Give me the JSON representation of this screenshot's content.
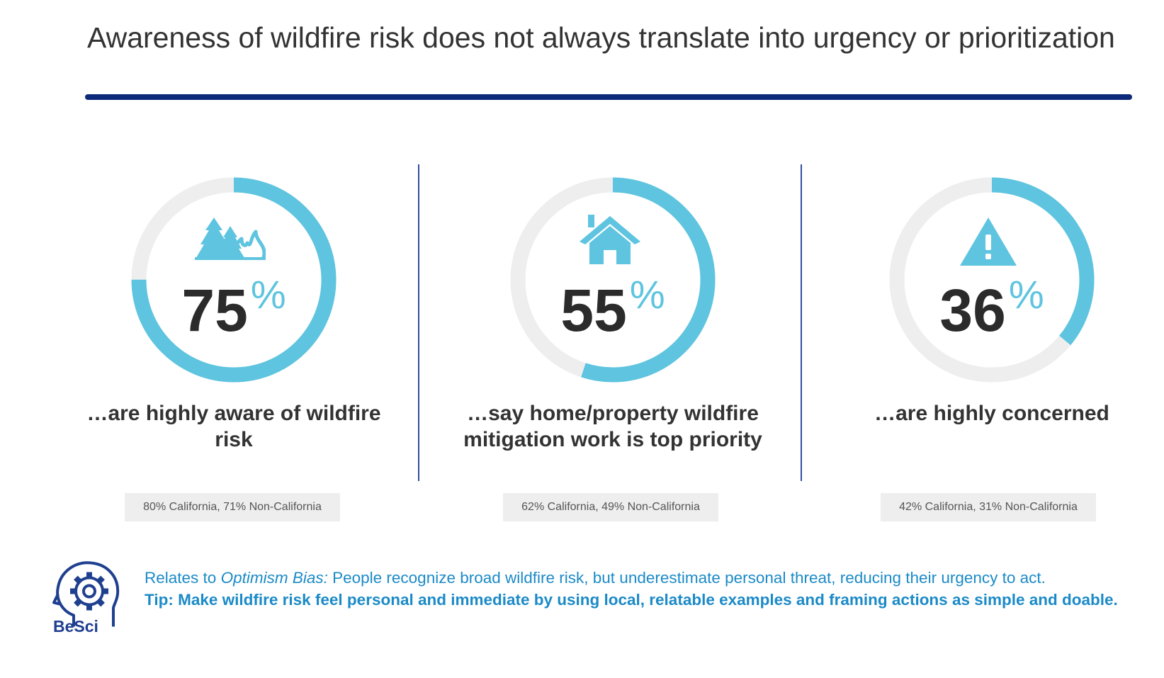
{
  "title": "Awareness of wildfire risk does not always translate into urgency or prioritization",
  "colors": {
    "accent": "#5ec4df",
    "track": "#eeeeee",
    "rule": "#0d2a7a",
    "note": "#1b8ac7"
  },
  "chart_data": {
    "type": "donut",
    "unit": "%",
    "max": 100,
    "stats": [
      {
        "value": 75,
        "icon": "forest-fire-icon",
        "caption": "…are highly aware of wildfire risk",
        "breakdown": "80% California, 71% Non-California"
      },
      {
        "value": 55,
        "icon": "house-icon",
        "caption": "…say home/property wildfire mitigation work is top priority",
        "breakdown": "62% California, 49% Non-California"
      },
      {
        "value": 36,
        "icon": "warning-icon",
        "caption": "…are highly concerned",
        "breakdown": "42% California, 31% Non-California"
      }
    ]
  },
  "footer": {
    "logo_text": "BeSci",
    "logo_icon": "head-gear-icon",
    "relates_prefix": "Relates to ",
    "bias_name": "Optimism Bias:",
    "relates_text": " People recognize broad wildfire risk, but underestimate personal threat, reducing their urgency to act.",
    "tip": "Tip: Make wildfire risk feel personal and immediate by using local, relatable examples and framing actions as simple and doable."
  }
}
